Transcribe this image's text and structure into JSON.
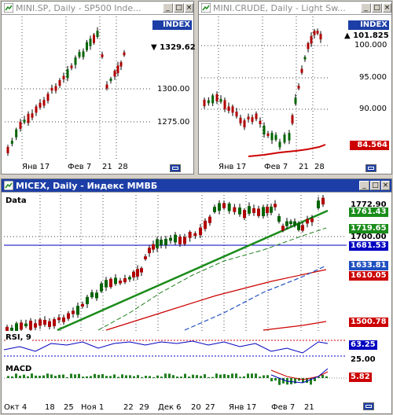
{
  "windows": {
    "sp": {
      "title": "MINI.SP, Daily - SP500 Inde...",
      "index_badge": "INDEX",
      "last_price": "1329.62",
      "y_ticks": [
        "1300.00",
        "1275.00"
      ],
      "x_ticks": [
        "Янв 17",
        "Фев 7",
        "21",
        "28"
      ]
    },
    "crude": {
      "title": "MINI.CRUDE, Daily - Light Sw...",
      "index_badge": "INDEX",
      "last_price": "101.825",
      "y_ticks": [
        "100.000",
        "95.000",
        "90.000"
      ],
      "ma_value": "84.564",
      "x_ticks": [
        "Янв 17",
        "Фев 7",
        "21",
        "28"
      ]
    },
    "micex": {
      "title": "MICEX, Daily - Индекс ММВБ",
      "data_label": "Data",
      "price_badges": [
        "1772.90",
        "1761.43",
        "1719.65",
        "1700.00",
        "1681.53",
        "1633.81",
        "1610.05",
        "1500.78"
      ],
      "rsi_label": "RSI, 9",
      "rsi_badges": [
        "63.25",
        "25.00"
      ],
      "macd_label": "MACD",
      "macd_badge": "5.82",
      "x_ticks": [
        "Окт 4",
        "18",
        "25",
        "Ноя 1",
        "22",
        "29",
        "Дек 6",
        "20",
        "27",
        "Янв 17",
        "Фев 7",
        "21"
      ]
    }
  },
  "colors": {
    "active_title": "#1c3ea6",
    "up_candle": "#006400",
    "down_candle": "#b00000",
    "trend_line": "#1a8c1a",
    "support_line": "#0000c0",
    "ma_red": "#cc0000",
    "ma_blue": "#2050c0",
    "ma_green": "#208020"
  }
}
